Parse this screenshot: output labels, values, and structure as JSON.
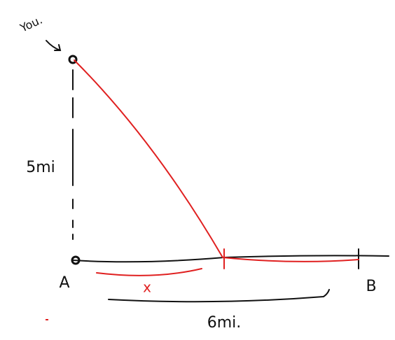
{
  "labels": {
    "you": "You.",
    "vertical_distance": "5mi",
    "point_a": "A",
    "point_b": "B",
    "unknown": "x",
    "horizontal_distance": "6mi."
  }
}
